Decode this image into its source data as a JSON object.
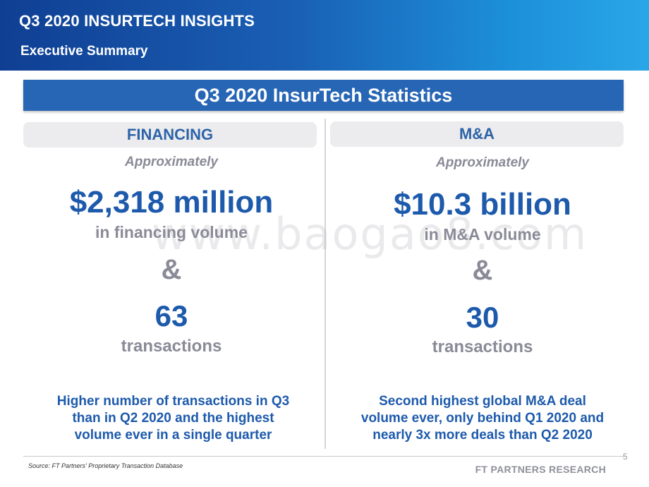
{
  "header": {
    "title": "Q3 2020 INSURTECH INSIGHTS",
    "subtitle": "Executive Summary"
  },
  "banner": {
    "title": "Q3 2020 InsurTech Statistics"
  },
  "financing": {
    "heading": "FINANCING",
    "approx": "Approximately",
    "amount": "$2,318 million",
    "amount_label": "in financing volume",
    "ampersand": "&",
    "count": "63",
    "count_label": "transactions",
    "description": "Higher number of transactions in Q3 than in Q2 2020 and the highest volume ever in a single quarter"
  },
  "ma": {
    "heading": "M&A",
    "approx": "Approximately",
    "amount": "$10.3 billion",
    "amount_label": "in M&A volume",
    "ampersand": "&",
    "count": "30",
    "count_label": "transactions",
    "description": "Second highest global M&A deal volume ever, only behind Q1 2020 and nearly 3x more deals than Q2 2020"
  },
  "watermark": "www.baogao8.com",
  "footer": {
    "source": "Source: FT Partners' Proprietary Transaction Database",
    "page_number": "5",
    "brand": "FT PARTNERS RESEARCH"
  },
  "colors": {
    "brand_blue": "#1d5aac",
    "banner_blue": "#2766b5",
    "gray_text": "#8a8a98"
  }
}
